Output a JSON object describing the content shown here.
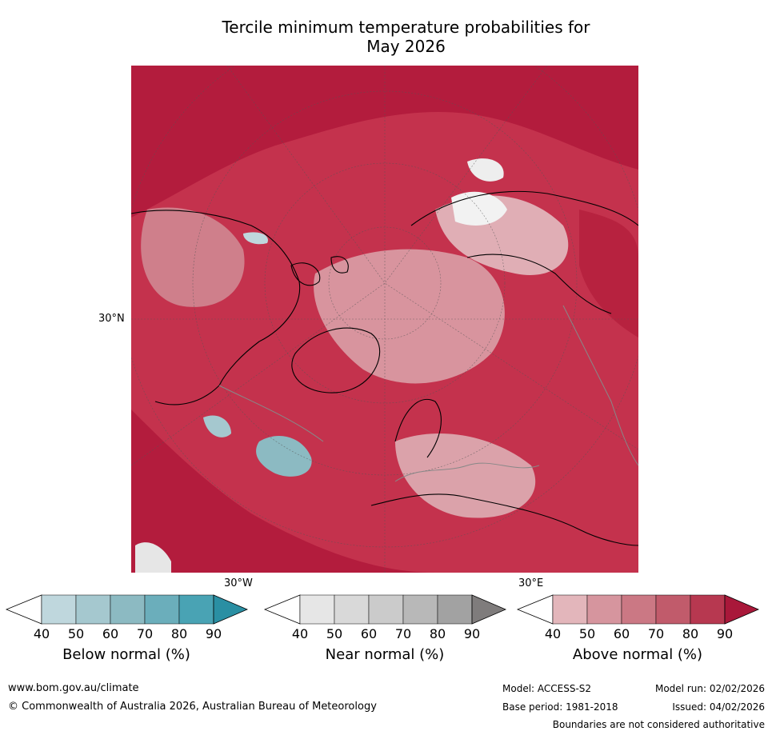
{
  "title_line1": "Tercile minimum temperature probabilities for",
  "title_line2": "May 2026",
  "map": {
    "lat_label": "30°N",
    "lon_label_left": "30°W",
    "lon_label_right": "30°E"
  },
  "colorbars": [
    {
      "label": "Below normal (%)",
      "ticks": [
        "40",
        "50",
        "60",
        "70",
        "80",
        "90"
      ],
      "colors": [
        "#ffffff",
        "#bfd7dd",
        "#a5c8cf",
        "#8cbac2",
        "#6baebb",
        "#49a3b4",
        "#2a8fa3"
      ]
    },
    {
      "label": "Near normal (%)",
      "ticks": [
        "40",
        "50",
        "60",
        "70",
        "80",
        "90"
      ],
      "colors": [
        "#ffffff",
        "#e6e6e6",
        "#d9d9d9",
        "#cbcbcb",
        "#b8b8b8",
        "#a2a2a2",
        "#7f7c7c"
      ]
    },
    {
      "label": "Above normal (%)",
      "ticks": [
        "40",
        "50",
        "60",
        "70",
        "80",
        "90"
      ],
      "colors": [
        "#ffffff",
        "#e3b6bb",
        "#d6959e",
        "#cb7884",
        "#c15b6b",
        "#b73850",
        "#a9183a"
      ]
    }
  ],
  "footer": {
    "url": "www.bom.gov.au/climate",
    "copyright": "© Commonwealth of Australia 2026, Australian Bureau of Meteorology",
    "model": "Model: ACCESS-S2",
    "model_run": "Model run: 02/02/2026",
    "base_period": "Base period: 1981-2018",
    "issued": "Issued: 04/02/2026",
    "disclaimer": "Boundaries are not considered authoritative"
  }
}
